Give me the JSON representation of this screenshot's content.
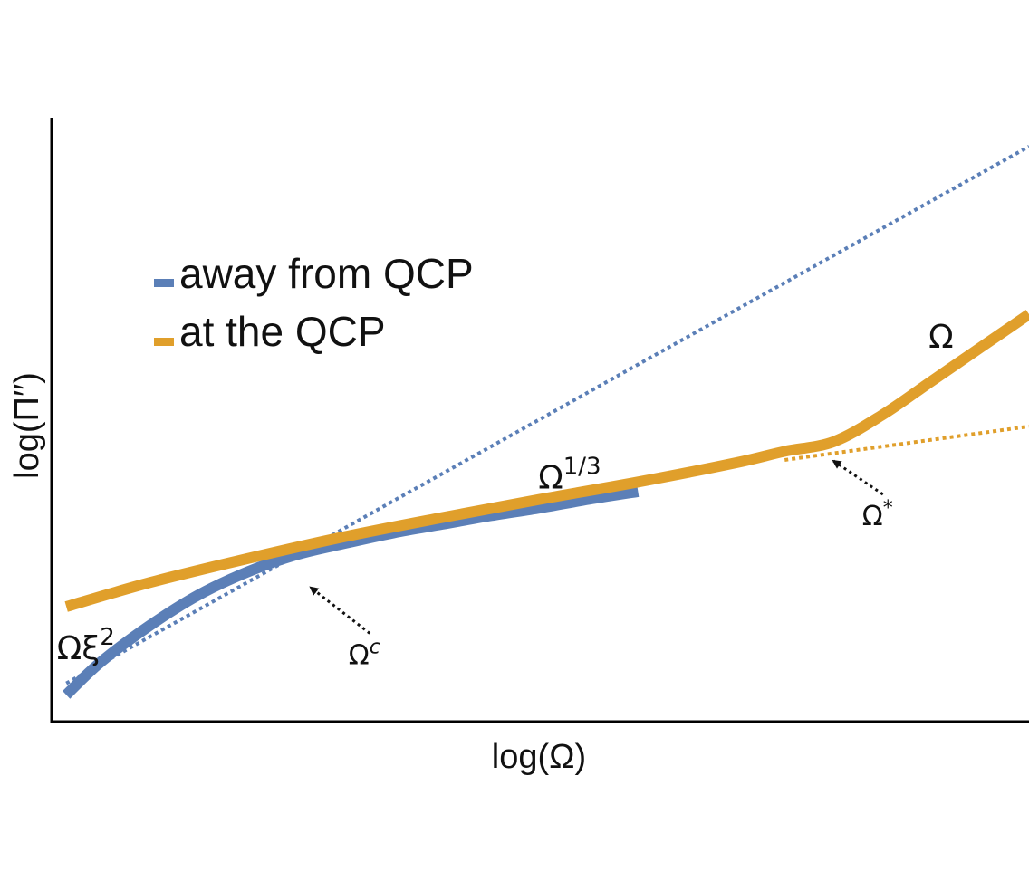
{
  "chart_data": {
    "type": "line",
    "scale": "log-log",
    "xlabel": "log(Ω)",
    "ylabel": "log(Π′′)",
    "xlim": [
      0,
      10
    ],
    "ylim": [
      0,
      6.3
    ],
    "grid": false,
    "legend": {
      "placement": "top-left",
      "entries": [
        {
          "label": "away from QCP",
          "color": "#5b7fb7"
        },
        {
          "label": "at the QCP",
          "color": "#e09f2b"
        }
      ]
    },
    "series": [
      {
        "name": "away from QCP",
        "color": "#5b7fb7",
        "style": "solid",
        "x": [
          0.15,
          0.5,
          1.0,
          1.5,
          2.0,
          2.5,
          3.0,
          3.5,
          4.0,
          4.5,
          5.0,
          5.5,
          6.0
        ],
        "y": [
          0.28,
          0.62,
          1.0,
          1.32,
          1.56,
          1.74,
          1.86,
          1.97,
          2.06,
          2.15,
          2.23,
          2.32,
          2.4
        ]
      },
      {
        "name": "at the QCP",
        "color": "#e09f2b",
        "style": "solid",
        "x": [
          0.15,
          1.0,
          2.0,
          3.0,
          4.0,
          5.0,
          6.0,
          7.0,
          7.5,
          8.0,
          8.5,
          9.0,
          9.5,
          10.0
        ],
        "y": [
          1.2,
          1.45,
          1.7,
          1.93,
          2.13,
          2.32,
          2.5,
          2.7,
          2.82,
          2.92,
          3.2,
          3.55,
          3.9,
          4.25
        ]
      },
      {
        "color": "#5b7fb7",
        "style": "dotted",
        "x": [
          0.15,
          10.0
        ],
        "y": [
          0.4,
          6.0
        ]
      },
      {
        "color": "#e09f2b",
        "style": "dotted",
        "x": [
          7.5,
          10.0
        ],
        "y": [
          2.73,
          3.08
        ]
      }
    ],
    "annotations": [
      {
        "text": "Ωξ",
        "sup": "2",
        "x": 0.35,
        "y": 0.65
      },
      {
        "text": "Ω",
        "sup": "1/3",
        "x": 5.3,
        "y": 2.43
      },
      {
        "text": "Ω",
        "sup": "",
        "x": 9.1,
        "y": 3.9
      },
      {
        "text": "Ω",
        "sup": "c",
        "x": 3.2,
        "y": 0.6,
        "arrow_to": [
          2.65,
          1.4
        ]
      },
      {
        "text": "Ω",
        "sup": "*",
        "x": 8.45,
        "y": 2.05,
        "arrow_to": [
          8.0,
          2.72
        ]
      }
    ]
  }
}
